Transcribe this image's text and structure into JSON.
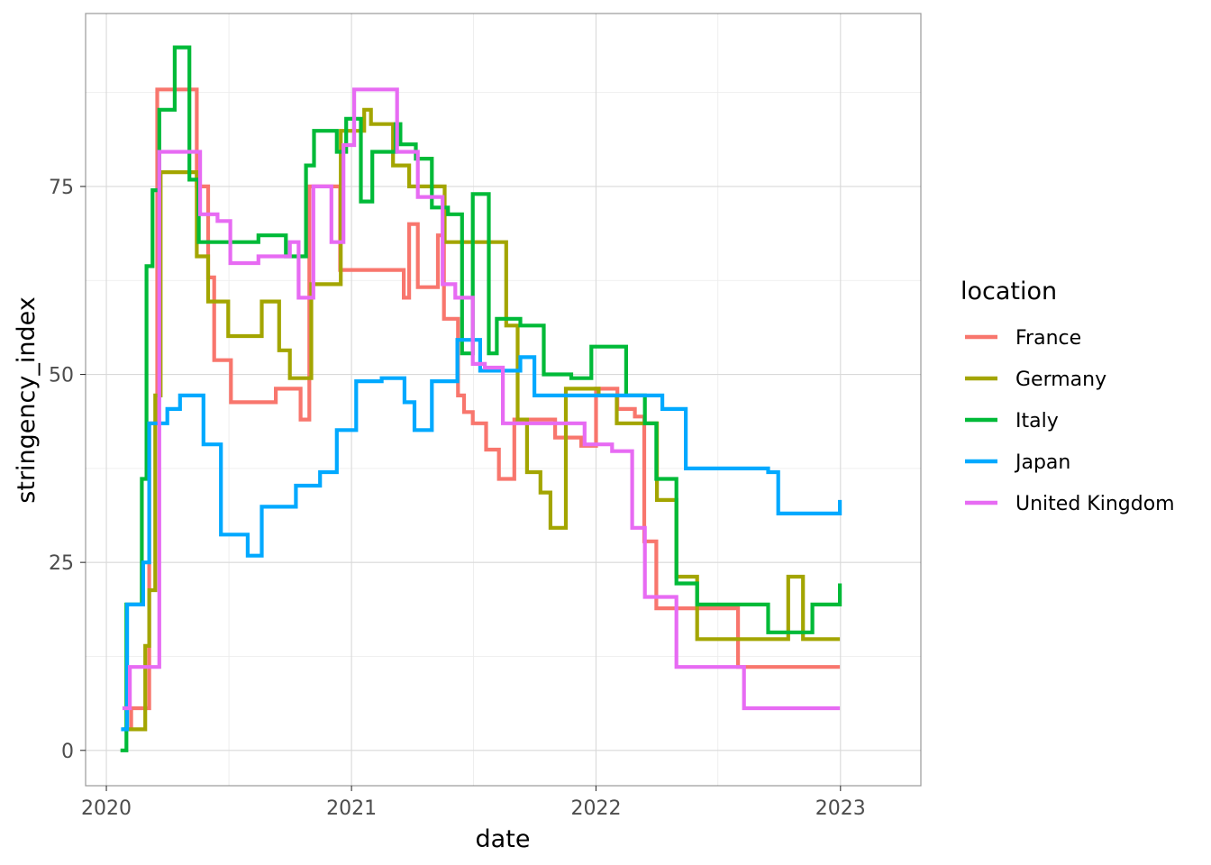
{
  "chart_data": {
    "type": "line",
    "xlabel": "date",
    "ylabel": "stringency_index",
    "x_ticks": [
      "2020",
      "2021",
      "2022",
      "2023"
    ],
    "y_ticks": [
      "0",
      "25",
      "50",
      "75"
    ],
    "xlim": [
      "2019-12-01",
      "2023-05-01"
    ],
    "ylim": [
      -4.7,
      98
    ],
    "grid": true,
    "legend": {
      "title": "location",
      "position": "right"
    },
    "series": [
      {
        "name": "France",
        "color": "#F8766D",
        "points": [
          [
            "2020-01-25",
            2.8
          ],
          [
            "2020-02-07",
            5.6
          ],
          [
            "2020-02-28",
            5.6
          ],
          [
            "2020-03-05",
            43.5
          ],
          [
            "2020-03-12",
            43.5
          ],
          [
            "2020-03-17",
            87.9
          ],
          [
            "2020-05-11",
            87.9
          ],
          [
            "2020-05-15",
            75
          ],
          [
            "2020-06-01",
            62.9
          ],
          [
            "2020-06-10",
            51.9
          ],
          [
            "2020-06-25",
            51.9
          ],
          [
            "2020-07-05",
            46.3
          ],
          [
            "2020-08-20",
            46.3
          ],
          [
            "2020-09-10",
            48.1
          ],
          [
            "2020-10-17",
            44
          ],
          [
            "2020-10-30",
            75
          ],
          [
            "2020-11-28",
            75
          ],
          [
            "2020-12-15",
            63.9
          ],
          [
            "2021-03-20",
            60.2
          ],
          [
            "2021-03-28",
            70
          ],
          [
            "2021-04-10",
            61.6
          ],
          [
            "2021-05-10",
            68.5
          ],
          [
            "2021-05-19",
            57.4
          ],
          [
            "2021-06-09",
            47.2
          ],
          [
            "2021-06-18",
            45
          ],
          [
            "2021-07-01",
            43.5
          ],
          [
            "2021-07-21",
            40
          ],
          [
            "2021-08-09",
            36.1
          ],
          [
            "2021-09-01",
            44
          ],
          [
            "2021-11-01",
            41.6
          ],
          [
            "2021-12-10",
            40.5
          ],
          [
            "2022-01-01",
            48.1
          ],
          [
            "2022-02-02",
            45.4
          ],
          [
            "2022-02-28",
            44.4
          ],
          [
            "2022-03-14",
            27.8
          ],
          [
            "2022-04-01",
            18.9
          ],
          [
            "2022-08-01",
            11.1
          ],
          [
            "2022-12-31",
            11.1
          ]
        ]
      },
      {
        "name": "Germany",
        "color": "#A3A500",
        "points": [
          [
            "2020-01-27",
            2.8
          ],
          [
            "2020-02-28",
            13.9
          ],
          [
            "2020-03-05",
            21.3
          ],
          [
            "2020-03-14",
            47.2
          ],
          [
            "2020-03-22",
            76.9
          ],
          [
            "2020-05-06",
            76.9
          ],
          [
            "2020-05-15",
            65.7
          ],
          [
            "2020-06-01",
            59.7
          ],
          [
            "2020-06-15",
            59.7
          ],
          [
            "2020-07-01",
            55.1
          ],
          [
            "2020-08-10",
            55.1
          ],
          [
            "2020-08-20",
            59.7
          ],
          [
            "2020-09-15",
            53.2
          ],
          [
            "2020-10-01",
            49.5
          ],
          [
            "2020-11-02",
            62
          ],
          [
            "2020-12-16",
            82.4
          ],
          [
            "2021-01-01",
            82.4
          ],
          [
            "2021-01-20",
            85.2
          ],
          [
            "2021-01-30",
            83.3
          ],
          [
            "2021-03-04",
            77.8
          ],
          [
            "2021-03-28",
            75
          ],
          [
            "2021-05-15",
            75
          ],
          [
            "2021-05-20",
            67.6
          ],
          [
            "2021-08-20",
            56.5
          ],
          [
            "2021-09-06",
            44
          ],
          [
            "2021-09-20",
            37
          ],
          [
            "2021-10-10",
            34.3
          ],
          [
            "2021-10-25",
            29.6
          ],
          [
            "2021-11-17",
            48.1
          ],
          [
            "2022-01-05",
            47.2
          ],
          [
            "2022-02-01",
            43.5
          ],
          [
            "2022-03-20",
            43.5
          ],
          [
            "2022-04-02",
            33.3
          ],
          [
            "2022-05-01",
            23.1
          ],
          [
            "2022-06-01",
            14.8
          ],
          [
            "2022-10-01",
            14.8
          ],
          [
            "2022-10-15",
            23.1
          ],
          [
            "2022-11-06",
            14.8
          ],
          [
            "2022-12-31",
            14.8
          ]
        ]
      },
      {
        "name": "Italy",
        "color": "#00BA38",
        "points": [
          [
            "2020-01-22",
            0
          ],
          [
            "2020-01-31",
            19.4
          ],
          [
            "2020-02-23",
            36.1
          ],
          [
            "2020-03-01",
            64.4
          ],
          [
            "2020-03-10",
            74.5
          ],
          [
            "2020-03-20",
            85.2
          ],
          [
            "2020-04-12",
            93.5
          ],
          [
            "2020-05-04",
            75.9
          ],
          [
            "2020-05-18",
            67.6
          ],
          [
            "2020-07-01",
            67.6
          ],
          [
            "2020-08-15",
            68.5
          ],
          [
            "2020-09-25",
            65.7
          ],
          [
            "2020-10-25",
            77.8
          ],
          [
            "2020-11-06",
            82.4
          ],
          [
            "2020-12-10",
            79.6
          ],
          [
            "2020-12-24",
            84
          ],
          [
            "2021-01-15",
            73
          ],
          [
            "2021-02-01",
            79.6
          ],
          [
            "2021-03-08",
            83.3
          ],
          [
            "2021-03-15",
            80.6
          ],
          [
            "2021-04-07",
            78.7
          ],
          [
            "2021-05-01",
            72.2
          ],
          [
            "2021-05-25",
            71.3
          ],
          [
            "2021-06-15",
            52.8
          ],
          [
            "2021-07-01",
            74
          ],
          [
            "2021-07-25",
            52.8
          ],
          [
            "2021-08-06",
            57.4
          ],
          [
            "2021-09-10",
            56.5
          ],
          [
            "2021-10-15",
            50
          ],
          [
            "2021-11-25",
            49.5
          ],
          [
            "2021-12-25",
            53.7
          ],
          [
            "2022-02-15",
            47.2
          ],
          [
            "2022-03-15",
            43.5
          ],
          [
            "2022-04-01",
            36.1
          ],
          [
            "2022-05-01",
            22.2
          ],
          [
            "2022-06-01",
            19.4
          ],
          [
            "2022-09-15",
            15.7
          ],
          [
            "2022-11-20",
            19.4
          ],
          [
            "2022-12-31",
            22.2
          ]
        ]
      },
      {
        "name": "Japan",
        "color": "#00A9FF",
        "points": [
          [
            "2020-01-23",
            2.8
          ],
          [
            "2020-02-01",
            19.4
          ],
          [
            "2020-02-25",
            25
          ],
          [
            "2020-03-05",
            43.5
          ],
          [
            "2020-04-01",
            45.4
          ],
          [
            "2020-04-20",
            47.2
          ],
          [
            "2020-05-25",
            40.7
          ],
          [
            "2020-06-20",
            28.7
          ],
          [
            "2020-07-30",
            25.9
          ],
          [
            "2020-08-20",
            32.4
          ],
          [
            "2020-09-10",
            32.4
          ],
          [
            "2020-10-10",
            35.2
          ],
          [
            "2020-10-30",
            35.2
          ],
          [
            "2020-11-15",
            37
          ],
          [
            "2020-12-10",
            42.6
          ],
          [
            "2021-01-08",
            49.1
          ],
          [
            "2021-02-15",
            49.5
          ],
          [
            "2021-03-21",
            46.3
          ],
          [
            "2021-04-05",
            42.6
          ],
          [
            "2021-05-01",
            49.1
          ],
          [
            "2021-05-25",
            49.1
          ],
          [
            "2021-06-08",
            54.6
          ],
          [
            "2021-07-12",
            50.5
          ],
          [
            "2021-08-15",
            50.5
          ],
          [
            "2021-09-10",
            52.3
          ],
          [
            "2021-10-01",
            47.2
          ],
          [
            "2022-01-05",
            47.2
          ],
          [
            "2022-02-05",
            47.2
          ],
          [
            "2022-04-10",
            45.4
          ],
          [
            "2022-05-15",
            37.5
          ],
          [
            "2022-09-15",
            37
          ],
          [
            "2022-09-30",
            31.5
          ],
          [
            "2022-12-31",
            33.3
          ]
        ]
      },
      {
        "name": "United Kingdom",
        "color": "#E76BF3",
        "points": [
          [
            "2020-01-25",
            5.6
          ],
          [
            "2020-02-05",
            11.1
          ],
          [
            "2020-03-13",
            11.1
          ],
          [
            "2020-03-20",
            79.6
          ],
          [
            "2020-05-10",
            79.6
          ],
          [
            "2020-05-20",
            71.3
          ],
          [
            "2020-06-15",
            70.4
          ],
          [
            "2020-07-04",
            64.8
          ],
          [
            "2020-08-15",
            65.7
          ],
          [
            "2020-09-14",
            65.7
          ],
          [
            "2020-10-01",
            67.6
          ],
          [
            "2020-10-14",
            60.2
          ],
          [
            "2020-11-05",
            75
          ],
          [
            "2020-12-02",
            67.6
          ],
          [
            "2020-12-20",
            80.5
          ],
          [
            "2021-01-05",
            87.9
          ],
          [
            "2021-03-10",
            79.6
          ],
          [
            "2021-04-10",
            73.6
          ],
          [
            "2021-05-17",
            62
          ],
          [
            "2021-06-05",
            60.2
          ],
          [
            "2021-07-01",
            51.4
          ],
          [
            "2021-07-19",
            50.9
          ],
          [
            "2021-08-15",
            43.5
          ],
          [
            "2021-09-10",
            43.5
          ],
          [
            "2021-10-01",
            43.5
          ],
          [
            "2021-11-01",
            43.5
          ],
          [
            "2021-12-15",
            40.7
          ],
          [
            "2022-01-10",
            40.7
          ],
          [
            "2022-01-25",
            39.8
          ],
          [
            "2022-02-24",
            29.6
          ],
          [
            "2022-03-15",
            20.4
          ],
          [
            "2022-04-01",
            20.4
          ],
          [
            "2022-05-01",
            11.1
          ],
          [
            "2022-08-10",
            5.6
          ],
          [
            "2022-12-31",
            5.6
          ]
        ]
      }
    ]
  }
}
